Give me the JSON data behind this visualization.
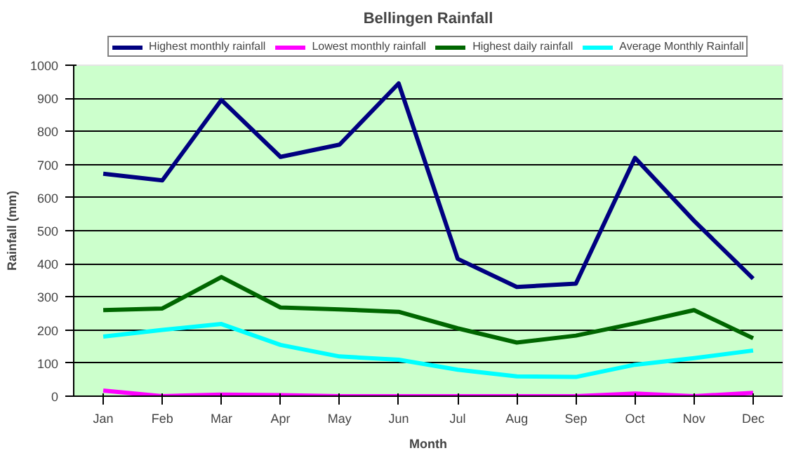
{
  "chart_data": {
    "type": "line",
    "title": "Bellingen Rainfall",
    "xlabel": "Month",
    "ylabel": "Rainfall (mm)",
    "categories": [
      "Jan",
      "Feb",
      "Mar",
      "Apr",
      "May",
      "Jun",
      "Jul",
      "Aug",
      "Sep",
      "Oct",
      "Nov",
      "Dec"
    ],
    "series": [
      {
        "name": "Highest monthly rainfall",
        "color": "#000080",
        "values": [
          672,
          652,
          895,
          723,
          760,
          945,
          415,
          330,
          340,
          720,
          530,
          355
        ]
      },
      {
        "name": "Lowest monthly rainfall",
        "color": "#ff00ff",
        "values": [
          17,
          0,
          5,
          3,
          0,
          0,
          0,
          0,
          0,
          8,
          0,
          10
        ]
      },
      {
        "name": "Highest daily rainfall",
        "color": "#006600",
        "values": [
          260,
          265,
          360,
          268,
          262,
          255,
          205,
          162,
          183,
          220,
          260,
          175
        ]
      },
      {
        "name": "Average Monthly Rainfall",
        "color": "#00ffff",
        "values": [
          180,
          200,
          218,
          155,
          120,
          110,
          80,
          60,
          58,
          95,
          115,
          138
        ]
      }
    ],
    "ylim": [
      0,
      1000
    ],
    "yticks": [
      0,
      100,
      200,
      300,
      400,
      500,
      600,
      700,
      800,
      900,
      1000
    ],
    "grid": "y",
    "legend": "top",
    "marker": "none",
    "line_style": "solid"
  }
}
